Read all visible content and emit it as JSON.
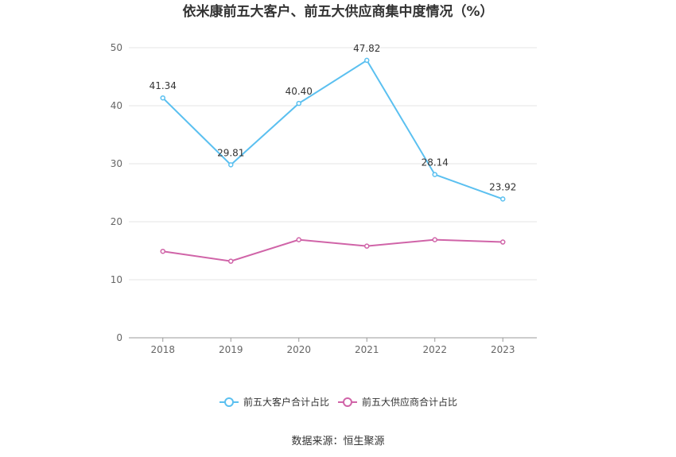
{
  "chart_data": {
    "type": "line",
    "title": "依米康前五大客户、前五大供应商集中度情况（%）",
    "categories": [
      "2018",
      "2019",
      "2020",
      "2021",
      "2022",
      "2023"
    ],
    "ylim": [
      0,
      50
    ],
    "yticks": [
      0,
      10,
      20,
      30,
      40,
      50
    ],
    "grid": true,
    "legend_position": "bottom",
    "series": [
      {
        "name": "前五大客户合计占比",
        "color": "#5bc0f0",
        "values": [
          41.34,
          29.81,
          40.4,
          47.82,
          28.14,
          23.92
        ],
        "labels": [
          "41.34",
          "29.81",
          "40.40",
          "47.82",
          "28.14",
          "23.92"
        ],
        "show_labels": true
      },
      {
        "name": "前五大供应商合计占比",
        "color": "#d064a8",
        "values": [
          14.9,
          13.2,
          16.9,
          15.8,
          16.9,
          16.5
        ],
        "show_labels": false
      }
    ]
  },
  "source": "数据来源：恒生聚源"
}
